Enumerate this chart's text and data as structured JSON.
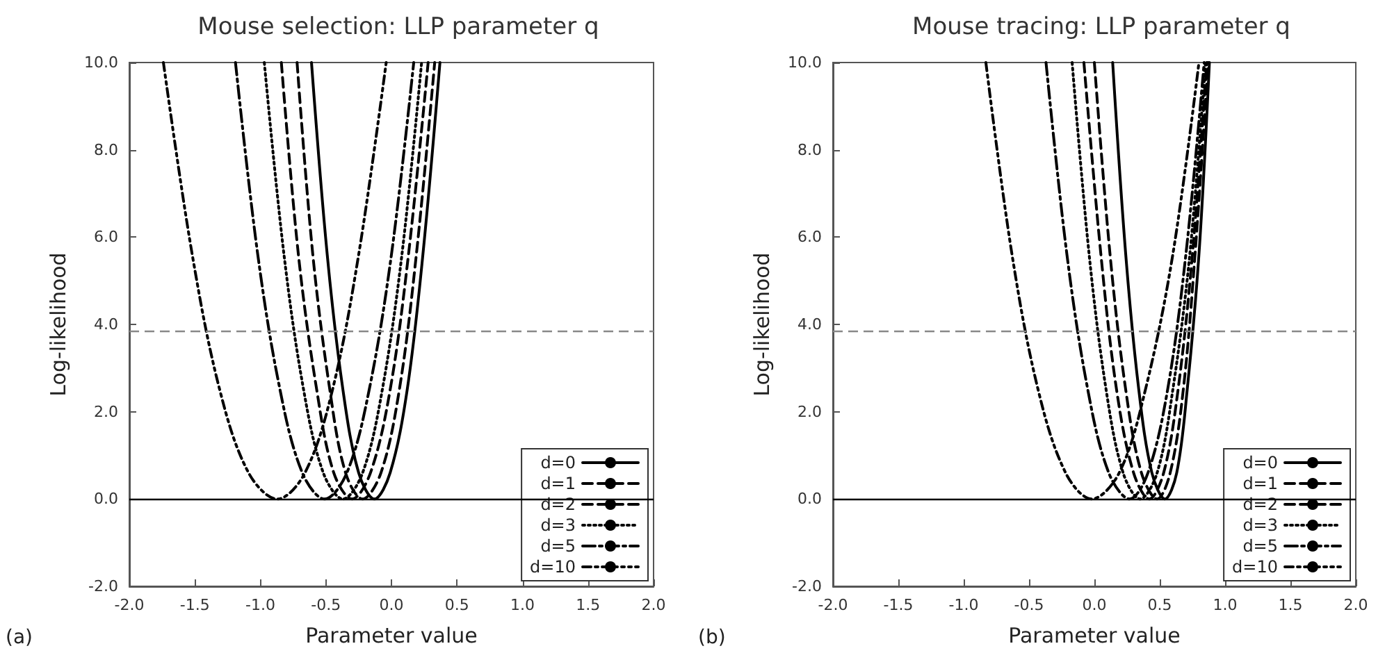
{
  "chart_data": [
    {
      "type": "line",
      "title": "Mouse selection: LLP parameter q",
      "xlabel": "Parameter value",
      "ylabel": "Log-likelihood",
      "annotations": [
        "(a)"
      ],
      "xlim": [
        -2,
        2
      ],
      "ylim": [
        -2,
        10
      ],
      "xticks": [
        {
          "value": -2,
          "label": "-2.0"
        },
        {
          "value": -1.5,
          "label": "-1.5"
        },
        {
          "value": -1,
          "label": "-1.0"
        },
        {
          "value": -0.5,
          "label": "-0.5"
        },
        {
          "value": 0,
          "label": "0.0"
        },
        {
          "value": 0.5,
          "label": "0.5"
        },
        {
          "value": 1,
          "label": "1.0"
        },
        {
          "value": 1.5,
          "label": "1.5"
        },
        {
          "value": 2,
          "label": "2.0"
        }
      ],
      "yticks": [
        {
          "value": -2,
          "label": "-2.0"
        },
        {
          "value": 0,
          "label": "0.0"
        },
        {
          "value": 2,
          "label": "2.0"
        },
        {
          "value": 4,
          "label": "4.0"
        },
        {
          "value": 6,
          "label": "6.0"
        },
        {
          "value": 8,
          "label": "8.0"
        },
        {
          "value": 10,
          "label": "10.0"
        }
      ],
      "grid": false,
      "legend": "bottom right",
      "marker": "none",
      "ref_lines": [
        {
          "axis": "y",
          "value": 3.84,
          "label": null,
          "color": "#888888",
          "line_style": "dashed"
        },
        {
          "axis": "y",
          "value": 0,
          "label": null,
          "color": "#000000",
          "line_style": "solid"
        }
      ],
      "series": [
        {
          "name": "d=0",
          "color": "#000000",
          "line_style": "solid",
          "x": [
            -0.61,
            -0.49,
            -0.37,
            -0.25,
            -0.13,
            -0.01,
            0.12,
            0.24,
            0.37
          ],
          "values": [
            10,
            5.6,
            2.5,
            0.6,
            0,
            0.6,
            2.5,
            5.6,
            10
          ]
        },
        {
          "name": "d=1",
          "color": "#000000",
          "line_style": "dashed",
          "x": [
            -0.72,
            -0.6,
            -0.47,
            -0.35,
            -0.22,
            -0.08,
            0.06,
            0.19,
            0.33
          ],
          "values": [
            10,
            5.6,
            2.5,
            0.6,
            0,
            0.6,
            2.5,
            5.6,
            10
          ]
        },
        {
          "name": "d=2",
          "color": "#000000",
          "line_style": "dashed",
          "x": [
            -0.84,
            -0.71,
            -0.57,
            -0.44,
            -0.3,
            -0.16,
            -0.01,
            0.13,
            0.28
          ],
          "values": [
            10,
            5.6,
            2.5,
            0.6,
            0,
            0.6,
            2.5,
            5.6,
            10
          ]
        },
        {
          "name": "d=3",
          "color": "#000000",
          "line_style": "dotted",
          "x": [
            -0.97,
            -0.82,
            -0.67,
            -0.52,
            -0.37,
            -0.22,
            -0.07,
            0.08,
            0.23
          ],
          "values": [
            10,
            5.6,
            2.5,
            0.6,
            0,
            0.6,
            2.5,
            5.6,
            10
          ]
        },
        {
          "name": "d=5",
          "color": "#000000",
          "line_style": "dashdot",
          "x": [
            -1.19,
            -1.02,
            -0.85,
            -0.68,
            -0.51,
            -0.34,
            -0.17,
            0,
            0.17
          ],
          "values": [
            10,
            5.6,
            2.5,
            0.6,
            0,
            0.6,
            2.5,
            5.6,
            10
          ]
        },
        {
          "name": "d=10",
          "color": "#000000",
          "line_style": "dashdotdot",
          "x": [
            -1.74,
            -1.52,
            -1.31,
            -1.09,
            -0.87,
            -0.66,
            -0.45,
            -0.25,
            -0.04
          ],
          "values": [
            10,
            5.6,
            2.5,
            0.6,
            0,
            0.6,
            2.5,
            5.6,
            10
          ]
        }
      ]
    },
    {
      "type": "line",
      "title": "Mouse tracing: LLP parameter q",
      "xlabel": "Parameter value",
      "ylabel": "Log-likelihood",
      "annotations": [
        "(b)"
      ],
      "xlim": [
        -2,
        2
      ],
      "ylim": [
        -2,
        10
      ],
      "xticks": [
        {
          "value": -2,
          "label": "-2.0"
        },
        {
          "value": -1.5,
          "label": "-1.5"
        },
        {
          "value": -1,
          "label": "-1.0"
        },
        {
          "value": -0.5,
          "label": "-0.5"
        },
        {
          "value": 0,
          "label": "0.0"
        },
        {
          "value": 0.5,
          "label": "0.5"
        },
        {
          "value": 1,
          "label": "1.0"
        },
        {
          "value": 1.5,
          "label": "1.5"
        },
        {
          "value": 2,
          "label": "2.0"
        }
      ],
      "yticks": [
        {
          "value": -2,
          "label": "-2.0"
        },
        {
          "value": 0,
          "label": "0.0"
        },
        {
          "value": 2,
          "label": "2.0"
        },
        {
          "value": 4,
          "label": "4.0"
        },
        {
          "value": 6,
          "label": "6.0"
        },
        {
          "value": 8,
          "label": "8.0"
        },
        {
          "value": 10,
          "label": "10.0"
        }
      ],
      "grid": false,
      "legend": "bottom right",
      "marker": "none",
      "ref_lines": [
        {
          "axis": "y",
          "value": 3.84,
          "label": null,
          "color": "#888888",
          "line_style": "dashed"
        },
        {
          "axis": "y",
          "value": 0,
          "label": null,
          "color": "#000000",
          "line_style": "solid"
        }
      ],
      "series": [
        {
          "name": "d=0",
          "color": "#000000",
          "line_style": "solid",
          "x": [
            0.14,
            0.24,
            0.34,
            0.44,
            0.54,
            0.63,
            0.71,
            0.8,
            0.88
          ],
          "values": [
            10,
            5.6,
            2.5,
            0.6,
            0,
            0.6,
            2.5,
            5.6,
            10
          ]
        },
        {
          "name": "d=1",
          "color": "#000000",
          "line_style": "dashed",
          "x": [
            0,
            0.12,
            0.24,
            0.36,
            0.48,
            0.58,
            0.68,
            0.77,
            0.87
          ],
          "values": [
            10,
            5.6,
            2.5,
            0.6,
            0,
            0.6,
            2.5,
            5.6,
            10
          ]
        },
        {
          "name": "d=2",
          "color": "#000000",
          "line_style": "dashed",
          "x": [
            -0.08,
            0.05,
            0.17,
            0.3,
            0.42,
            0.53,
            0.64,
            0.75,
            0.86
          ],
          "values": [
            10,
            5.6,
            2.5,
            0.6,
            0,
            0.6,
            2.5,
            5.6,
            10
          ]
        },
        {
          "name": "d=3",
          "color": "#000000",
          "line_style": "dotted",
          "x": [
            -0.17,
            -0.04,
            0.09,
            0.22,
            0.35,
            0.48,
            0.6,
            0.73,
            0.85
          ],
          "values": [
            10,
            5.6,
            2.5,
            0.6,
            0,
            0.6,
            2.5,
            5.6,
            10
          ]
        },
        {
          "name": "d=5",
          "color": "#000000",
          "line_style": "dashdot",
          "x": [
            -0.37,
            -0.21,
            -0.05,
            0.11,
            0.27,
            0.41,
            0.56,
            0.7,
            0.84
          ],
          "values": [
            10,
            5.6,
            2.5,
            0.6,
            0,
            0.6,
            2.5,
            5.6,
            10
          ]
        },
        {
          "name": "d=10",
          "color": "#000000",
          "line_style": "dashdotdot",
          "x": [
            -0.83,
            -0.63,
            -0.43,
            -0.22,
            -0.02,
            0.19,
            0.39,
            0.6,
            0.8
          ],
          "values": [
            10,
            5.6,
            2.5,
            0.6,
            0,
            0.6,
            2.5,
            5.6,
            10
          ]
        }
      ]
    }
  ]
}
